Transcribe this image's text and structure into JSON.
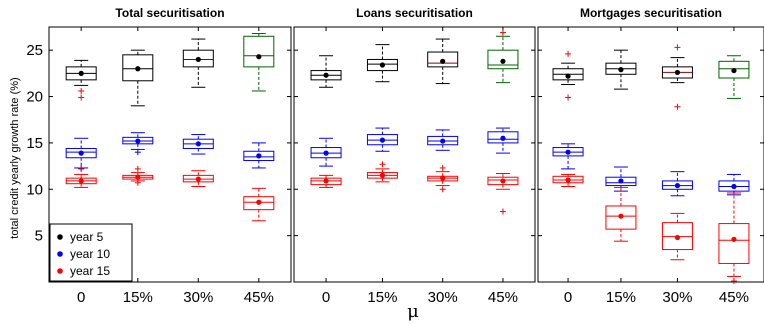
{
  "chart_data": {
    "type": "box",
    "panels": [
      {
        "title": "Total securitisation",
        "categories": [
          "0",
          "15%",
          "30%",
          "45%"
        ],
        "series": [
          {
            "name": "year 5",
            "boxes": [
              {
                "median": 22.5,
                "q1": 21.8,
                "q3": 23.2,
                "whisker_low": 21.2,
                "whisker_high": 23.9,
                "mean": 22.5,
                "outliers": [
                  20.6,
                  19.9
                ]
              },
              {
                "median": 23.0,
                "q1": 21.7,
                "q3": 24.5,
                "whisker_low": 19.0,
                "whisker_high": 25.0,
                "mean": 23.0,
                "outliers": []
              },
              {
                "median": 24.0,
                "q1": 23.2,
                "q3": 25.0,
                "whisker_low": 21.0,
                "whisker_high": 26.2,
                "mean": 24.0,
                "outliers": []
              },
              {
                "median": 24.4,
                "q1": 23.2,
                "q3": 26.5,
                "whisker_low": 20.6,
                "whisker_high": 26.8,
                "mean": 24.3,
                "outliers": []
              }
            ]
          },
          {
            "name": "year 10",
            "boxes": [
              {
                "median": 14.0,
                "q1": 13.4,
                "q3": 14.4,
                "whisker_low": 12.3,
                "whisker_high": 15.5,
                "mean": 13.9,
                "outliers": [
                  12.2
                ]
              },
              {
                "median": 15.2,
                "q1": 14.9,
                "q3": 15.6,
                "whisker_low": 14.3,
                "whisker_high": 16.1,
                "mean": 15.2,
                "outliers": [
                  14.0
                ]
              },
              {
                "median": 14.9,
                "q1": 14.4,
                "q3": 15.4,
                "whisker_low": 13.8,
                "whisker_high": 15.9,
                "mean": 14.9,
                "outliers": []
              },
              {
                "median": 13.5,
                "q1": 13.1,
                "q3": 14.1,
                "whisker_low": 12.3,
                "whisker_high": 15.0,
                "mean": 13.6,
                "outliers": []
              }
            ]
          },
          {
            "name": "year 15",
            "boxes": [
              {
                "median": 10.9,
                "q1": 10.6,
                "q3": 11.2,
                "whisker_low": 10.2,
                "whisker_high": 11.6,
                "mean": 10.9,
                "outliers": [
                  12.3
                ]
              },
              {
                "median": 11.3,
                "q1": 11.1,
                "q3": 11.5,
                "whisker_low": 10.9,
                "whisker_high": 11.8,
                "mean": 11.3,
                "outliers": [
                  12.2,
                  10.7
                ]
              },
              {
                "median": 11.1,
                "q1": 10.8,
                "q3": 11.5,
                "whisker_low": 10.3,
                "whisker_high": 12.0,
                "mean": 11.1,
                "outliers": []
              },
              {
                "median": 8.6,
                "q1": 7.8,
                "q3": 9.2,
                "whisker_low": 6.6,
                "whisker_high": 10.1,
                "mean": 8.6,
                "outliers": []
              }
            ]
          }
        ]
      },
      {
        "title": "Loans securitisation",
        "categories": [
          "0",
          "15%",
          "30%",
          "45%"
        ],
        "series": [
          {
            "name": "year 5",
            "boxes": [
              {
                "median": 22.3,
                "q1": 21.8,
                "q3": 22.8,
                "whisker_low": 21.0,
                "whisker_high": 24.4,
                "mean": 22.3,
                "outliers": []
              },
              {
                "median": 23.5,
                "q1": 22.8,
                "q3": 24.0,
                "whisker_low": 21.6,
                "whisker_high": 25.6,
                "mean": 23.4,
                "outliers": []
              },
              {
                "median": 23.6,
                "q1": 23.2,
                "q3": 24.8,
                "whisker_low": 21.4,
                "whisker_high": 26.2,
                "mean": 23.8,
                "outliers": []
              },
              {
                "median": 23.4,
                "q1": 23.0,
                "q3": 25.0,
                "whisker_low": 21.5,
                "whisker_high": 26.5,
                "mean": 23.8,
                "outliers": [
                  26.9
                ]
              }
            ]
          },
          {
            "name": "year 10",
            "boxes": [
              {
                "median": 13.9,
                "q1": 13.4,
                "q3": 14.5,
                "whisker_low": 12.5,
                "whisker_high": 15.5,
                "mean": 13.9,
                "outliers": []
              },
              {
                "median": 15.3,
                "q1": 14.8,
                "q3": 15.9,
                "whisker_low": 14.1,
                "whisker_high": 16.6,
                "mean": 15.3,
                "outliers": []
              },
              {
                "median": 15.2,
                "q1": 14.8,
                "q3": 15.7,
                "whisker_low": 14.2,
                "whisker_high": 16.4,
                "mean": 15.2,
                "outliers": []
              },
              {
                "median": 15.4,
                "q1": 15.0,
                "q3": 16.2,
                "whisker_low": 13.9,
                "whisker_high": 16.6,
                "mean": 15.5,
                "outliers": []
              }
            ]
          },
          {
            "name": "year 15",
            "boxes": [
              {
                "median": 10.9,
                "q1": 10.5,
                "q3": 11.2,
                "whisker_low": 10.2,
                "whisker_high": 11.5,
                "mean": 10.9,
                "outliers": []
              },
              {
                "median": 11.5,
                "q1": 11.2,
                "q3": 11.8,
                "whisker_low": 10.8,
                "whisker_high": 12.2,
                "mean": 11.5,
                "outliers": [
                  12.7
                ]
              },
              {
                "median": 11.2,
                "q1": 10.9,
                "q3": 11.4,
                "whisker_low": 10.4,
                "whisker_high": 11.9,
                "mean": 11.2,
                "outliers": [
                  12.3,
                  10.0
                ]
              },
              {
                "median": 11.0,
                "q1": 10.5,
                "q3": 11.3,
                "whisker_low": 10.0,
                "whisker_high": 11.7,
                "mean": 10.9,
                "outliers": [
                  7.6
                ]
              }
            ]
          }
        ]
      },
      {
        "title": "Mortgages securitisation",
        "categories": [
          "0",
          "15%",
          "30%",
          "45%"
        ],
        "series": [
          {
            "name": "year 5",
            "boxes": [
              {
                "median": 22.4,
                "q1": 21.8,
                "q3": 23.0,
                "whisker_low": 21.3,
                "whisker_high": 23.6,
                "mean": 22.2,
                "outliers": [
                  24.6,
                  19.9
                ]
              },
              {
                "median": 23.0,
                "q1": 22.4,
                "q3": 23.6,
                "whisker_low": 20.8,
                "whisker_high": 25.0,
                "mean": 22.9,
                "outliers": []
              },
              {
                "median": 22.6,
                "q1": 22.0,
                "q3": 23.2,
                "whisker_low": 21.5,
                "whisker_high": 24.2,
                "mean": 22.6,
                "outliers": [
                  25.3,
                  18.9
                ]
              },
              {
                "median": 23.0,
                "q1": 22.0,
                "q3": 23.8,
                "whisker_low": 19.8,
                "whisker_high": 24.4,
                "mean": 22.8,
                "outliers": []
              }
            ]
          },
          {
            "name": "year 10",
            "boxes": [
              {
                "median": 14.0,
                "q1": 13.6,
                "q3": 14.5,
                "whisker_low": 12.2,
                "whisker_high": 14.9,
                "mean": 14.0,
                "outliers": []
              },
              {
                "median": 10.7,
                "q1": 10.4,
                "q3": 11.3,
                "whisker_low": 9.8,
                "whisker_high": 12.4,
                "mean": 10.9,
                "outliers": []
              },
              {
                "median": 10.4,
                "q1": 10.0,
                "q3": 10.9,
                "whisker_low": 9.3,
                "whisker_high": 11.9,
                "mean": 10.4,
                "outliers": []
              },
              {
                "median": 10.3,
                "q1": 9.8,
                "q3": 10.9,
                "whisker_low": 9.4,
                "whisker_high": 11.6,
                "mean": 10.3,
                "outliers": []
              }
            ]
          },
          {
            "name": "year 15",
            "boxes": [
              {
                "median": 11.0,
                "q1": 10.7,
                "q3": 11.4,
                "whisker_low": 10.3,
                "whisker_high": 11.6,
                "mean": 11.0,
                "outliers": []
              },
              {
                "median": 7.1,
                "q1": 5.7,
                "q3": 8.2,
                "whisker_low": 4.4,
                "whisker_high": 10.2,
                "mean": 7.1,
                "outliers": []
              },
              {
                "median": 4.9,
                "q1": 3.5,
                "q3": 6.4,
                "whisker_low": 2.4,
                "whisker_high": 7.4,
                "mean": 4.8,
                "outliers": []
              },
              {
                "median": 4.5,
                "q1": 2.0,
                "q3": 6.3,
                "whisker_low": 0.6,
                "whisker_high": 9.6,
                "mean": 4.6,
                "outliers": [
                  0.1
                ]
              }
            ]
          }
        ]
      }
    ],
    "ylabel": "total credit yearly growth rate (%)",
    "xlabel": "μ",
    "ylim": [
      0,
      27.5
    ],
    "yticks": [
      5,
      10,
      15,
      20,
      25
    ],
    "grid": false,
    "legend": {
      "placement": "bottom-left of first panel",
      "entries": [
        {
          "label": "year 5",
          "color": "#000000"
        },
        {
          "label": "year 10",
          "color": "#0000ff"
        },
        {
          "label": "year 15",
          "color": "#ff0000"
        }
      ]
    },
    "colors": {
      "year 5": "#000000",
      "year 10": "#0000ff",
      "year 15": "#ff0000",
      "year 5 highlight (45% box, first two panels and last)": "#006400",
      "median line year 5 at 30%": "#8b0000"
    }
  }
}
